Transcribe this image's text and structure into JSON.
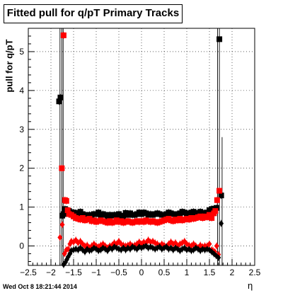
{
  "header": {
    "title": "Fitted pull for q/pT  Primary Tracks",
    "datestamp": "Wed Oct  8 18:21:44 2014"
  },
  "chart_data": {
    "type": "scatter",
    "title": "Fitted pull for q/pT  Primary Tracks",
    "xlabel": "η",
    "ylabel": "pull for q/pT",
    "xlim": [
      -2.5,
      2.5
    ],
    "ylim": [
      -0.5,
      5.6
    ],
    "grid": true,
    "xticks": [
      -2.5,
      -2,
      -1.5,
      -1,
      -0.5,
      0,
      0.5,
      1,
      1.5,
      2,
      2.5
    ],
    "xtick_labels": [
      "−2.5",
      "−2",
      "−1.5",
      "−1",
      "−0.5",
      "0",
      "0.5",
      "1",
      "1.5",
      "2",
      "2.5"
    ],
    "yticks": [
      0,
      1,
      2,
      3,
      4,
      5
    ],
    "ytick_labels": [
      "0",
      "1",
      "2",
      "3",
      "4",
      "5"
    ],
    "series": [
      {
        "marker": "square",
        "color": "#000000",
        "x": [
          -1.82,
          -1.79,
          -1.75,
          -1.72,
          -1.69,
          -1.66,
          -1.63,
          -1.6,
          -1.55,
          -1.5,
          -1.45,
          -1.4,
          -1.35,
          -1.3,
          -1.25,
          -1.2,
          -1.15,
          -1.1,
          -1.05,
          -1.0,
          -0.95,
          -0.9,
          -0.85,
          -0.8,
          -0.75,
          -0.7,
          -0.65,
          -0.6,
          -0.55,
          -0.5,
          -0.45,
          -0.4,
          -0.35,
          -0.3,
          -0.25,
          -0.2,
          -0.15,
          -0.1,
          -0.05,
          0.0,
          0.05,
          0.1,
          0.15,
          0.2,
          0.25,
          0.3,
          0.35,
          0.4,
          0.45,
          0.5,
          0.55,
          0.6,
          0.65,
          0.7,
          0.75,
          0.8,
          0.85,
          0.9,
          0.95,
          1.0,
          1.05,
          1.1,
          1.15,
          1.2,
          1.25,
          1.3,
          1.35,
          1.4,
          1.45,
          1.5,
          1.55,
          1.6,
          1.66,
          1.72,
          1.76
        ],
        "y": [
          3.72,
          3.82,
          0.78,
          0.82,
          0.95,
          0.92,
          0.9,
          0.9,
          0.87,
          0.86,
          0.85,
          0.8,
          0.88,
          0.82,
          0.8,
          0.78,
          0.8,
          0.76,
          0.82,
          0.82,
          0.86,
          0.8,
          0.82,
          0.8,
          0.76,
          0.8,
          0.78,
          0.8,
          0.8,
          0.82,
          0.78,
          0.76,
          0.85,
          0.8,
          0.84,
          0.8,
          0.8,
          0.82,
          0.86,
          0.82,
          0.86,
          0.84,
          0.8,
          0.82,
          0.8,
          0.82,
          0.84,
          0.82,
          0.8,
          0.78,
          0.82,
          0.86,
          0.84,
          0.82,
          0.8,
          0.82,
          0.84,
          0.88,
          0.86,
          0.82,
          0.84,
          0.86,
          0.88,
          0.84,
          0.85,
          0.88,
          0.85,
          0.85,
          0.86,
          0.92,
          0.95,
          0.96,
          0.98,
          5.32,
          1.3
        ]
      },
      {
        "marker": "square",
        "color": "#ff0000",
        "x": [
          -1.76,
          -1.72,
          -1.69,
          -1.66,
          -1.63,
          -1.6,
          -1.55,
          -1.5,
          -1.45,
          -1.4,
          -1.35,
          -1.3,
          -1.25,
          -1.2,
          -1.15,
          -1.1,
          -1.05,
          -1.0,
          -0.95,
          -0.9,
          -0.85,
          -0.8,
          -0.75,
          -0.7,
          -0.65,
          -0.6,
          -0.55,
          -0.5,
          -0.45,
          -0.4,
          -0.35,
          -0.3,
          -0.25,
          -0.2,
          -0.15,
          -0.1,
          -0.05,
          0.0,
          0.05,
          0.1,
          0.15,
          0.2,
          0.25,
          0.3,
          0.35,
          0.4,
          0.45,
          0.5,
          0.55,
          0.6,
          0.65,
          0.7,
          0.75,
          0.8,
          0.85,
          0.9,
          0.95,
          1.0,
          1.05,
          1.1,
          1.15,
          1.2,
          1.25,
          1.3,
          1.35,
          1.4,
          1.45,
          1.5,
          1.55,
          1.6,
          1.63,
          1.67,
          1.72
        ],
        "y": [
          2.0,
          5.42,
          1.18,
          1.16,
          0.92,
          0.82,
          0.8,
          0.76,
          0.72,
          0.7,
          0.68,
          0.72,
          0.66,
          0.68,
          0.7,
          0.64,
          0.66,
          0.62,
          0.64,
          0.66,
          0.64,
          0.62,
          0.6,
          0.64,
          0.6,
          0.62,
          0.66,
          0.62,
          0.64,
          0.6,
          0.62,
          0.64,
          0.62,
          0.6,
          0.62,
          0.64,
          0.62,
          0.64,
          0.62,
          0.66,
          0.64,
          0.62,
          0.64,
          0.62,
          0.6,
          0.62,
          0.64,
          0.66,
          0.68,
          0.7,
          0.66,
          0.64,
          0.68,
          0.66,
          0.7,
          0.66,
          0.68,
          0.7,
          0.68,
          0.72,
          0.7,
          0.72,
          0.74,
          0.76,
          0.72,
          0.76,
          0.74,
          0.8,
          0.72,
          0.84,
          0.9,
          1.18,
          1.42
        ]
      },
      {
        "marker": "diamond",
        "color": "#ff0000",
        "x": [
          -1.8,
          -1.75,
          -1.7,
          -1.66,
          -1.62,
          -1.58,
          -1.55,
          -1.5,
          -1.45,
          -1.4,
          -1.35,
          -1.3,
          -1.25,
          -1.2,
          -1.15,
          -1.1,
          -1.05,
          -1.0,
          -0.95,
          -0.9,
          -0.85,
          -0.8,
          -0.75,
          -0.7,
          -0.65,
          -0.6,
          -0.55,
          -0.5,
          -0.45,
          -0.4,
          -0.35,
          -0.3,
          -0.25,
          -0.2,
          -0.15,
          -0.1,
          -0.05,
          0.0,
          0.05,
          0.1,
          0.15,
          0.2,
          0.25,
          0.3,
          0.35,
          0.4,
          0.45,
          0.5,
          0.55,
          0.6,
          0.65,
          0.7,
          0.75,
          0.8,
          0.85,
          0.9,
          0.95,
          1.0,
          1.05,
          1.1,
          1.15,
          1.2,
          1.25,
          1.3,
          1.35,
          1.4,
          1.45,
          1.5,
          1.55,
          1.58,
          1.62,
          1.66,
          1.7
        ],
        "y": [
          0.22,
          0.55,
          -0.2,
          -0.1,
          -0.08,
          0.05,
          0.12,
          0.1,
          0.15,
          0.08,
          0.12,
          0.05,
          0.0,
          0.02,
          -0.05,
          0.0,
          0.05,
          0.0,
          -0.02,
          0.02,
          0.05,
          0.0,
          -0.05,
          0.0,
          0.02,
          0.08,
          0.05,
          0.12,
          0.05,
          0.02,
          0.0,
          0.02,
          0.05,
          0.0,
          0.02,
          0.05,
          0.1,
          0.05,
          0.1,
          0.08,
          0.15,
          0.1,
          0.12,
          0.08,
          0.05,
          0.0,
          0.05,
          0.02,
          -0.02,
          0.05,
          0.1,
          0.05,
          0.08,
          0.0,
          0.05,
          0.08,
          0.12,
          0.05,
          0.02,
          0.0,
          0.05,
          0.0,
          -0.05,
          0.02,
          -0.02,
          0.0,
          0.0,
          0.05,
          -0.1,
          -0.12,
          -0.15,
          0.0,
          -0.22
        ]
      },
      {
        "marker": "diamond",
        "color": "#000000",
        "x": [
          -1.72,
          -1.68,
          -1.65,
          -1.62,
          -1.58,
          -1.55,
          -1.5,
          -1.45,
          -1.4,
          -1.35,
          -1.3,
          -1.25,
          -1.2,
          -1.15,
          -1.1,
          -1.05,
          -1.0,
          -0.95,
          -0.9,
          -0.85,
          -0.8,
          -0.75,
          -0.7,
          -0.65,
          -0.6,
          -0.55,
          -0.5,
          -0.45,
          -0.4,
          -0.35,
          -0.3,
          -0.25,
          -0.2,
          -0.15,
          -0.1,
          -0.05,
          0.0,
          0.05,
          0.1,
          0.15,
          0.2,
          0.25,
          0.3,
          0.35,
          0.4,
          0.45,
          0.5,
          0.55,
          0.6,
          0.65,
          0.7,
          0.75,
          0.8,
          0.85,
          0.9,
          0.95,
          1.0,
          1.05,
          1.1,
          1.15,
          1.2,
          1.25,
          1.3,
          1.35,
          1.4,
          1.45,
          1.5,
          1.55,
          1.6,
          1.65,
          1.7,
          1.76
        ],
        "y": [
          -0.48,
          -0.42,
          -0.35,
          -0.28,
          -0.2,
          -0.12,
          -0.1,
          -0.08,
          -0.1,
          -0.05,
          -0.1,
          -0.15,
          -0.08,
          -0.12,
          -0.1,
          -0.05,
          -0.08,
          -0.12,
          -0.1,
          -0.05,
          -0.08,
          -0.12,
          -0.05,
          -0.08,
          -0.02,
          -0.05,
          -0.08,
          -0.1,
          -0.05,
          -0.1,
          -0.05,
          -0.08,
          -0.02,
          -0.05,
          -0.08,
          -0.02,
          -0.05,
          -0.02,
          0.0,
          -0.05,
          -0.02,
          -0.05,
          -0.08,
          -0.05,
          -0.02,
          -0.08,
          -0.05,
          -0.02,
          -0.08,
          -0.05,
          -0.1,
          -0.05,
          -0.08,
          -0.12,
          -0.08,
          -0.05,
          -0.1,
          -0.08,
          -0.12,
          -0.1,
          -0.05,
          -0.08,
          -0.12,
          -0.08,
          -0.1,
          -0.08,
          -0.1,
          -0.15,
          -0.2,
          -0.25,
          -0.3,
          0.58
        ]
      }
    ]
  }
}
